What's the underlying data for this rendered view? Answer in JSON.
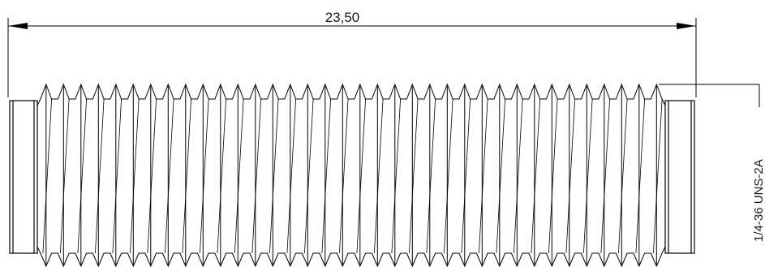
{
  "drawing": {
    "overall_length_label": "23,50",
    "thread_callout": "1/4-36 UNS-2A",
    "line_color": "#000000",
    "thread_crest_count": 36
  }
}
